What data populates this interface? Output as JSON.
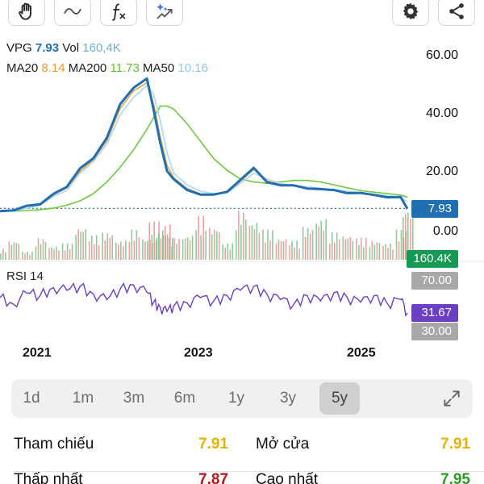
{
  "toolbar": {
    "buttons": [
      {
        "icon": "hand-icon"
      },
      {
        "icon": "line-tool-icon"
      },
      {
        "icon": "function-icon"
      },
      {
        "icon": "ai-sparkle-icon"
      },
      {
        "icon": "gear-icon"
      },
      {
        "icon": "share-icon"
      }
    ]
  },
  "legend": {
    "symbol": "VPG",
    "price": "7.93",
    "vol_label": "Vol",
    "vol_value": "160,4K",
    "ma20_label": "MA20",
    "ma20_value": "8.14",
    "ma200_label": "MA200",
    "ma200_value": "11.73",
    "ma50_label": "MA50",
    "ma50_value": "10.16"
  },
  "colors": {
    "price": "#1f6fb2",
    "ma20": "#f2a23a",
    "ma200": "#6cc93d",
    "ma50": "#a9d8f2",
    "vol_up": "#79c38a",
    "vol_down": "#ef8f8f",
    "rsi": "#6a3fc4",
    "volume_tag": "#179b54",
    "rsi_level_tag": "#a8a8a8",
    "ref_yellow": "#e8b100",
    "low_red": "#c0121b",
    "high_green": "#2a9d22"
  },
  "chart_data": {
    "type": "line",
    "symbol": "VPG",
    "x": [
      "2020-05",
      "2020-07",
      "2020-09",
      "2020-11",
      "2021-01",
      "2021-03",
      "2021-05",
      "2021-07",
      "2021-09",
      "2021-11",
      "2022-01",
      "2022-03",
      "2022-04",
      "2022-05",
      "2022-06",
      "2022-07",
      "2022-09",
      "2022-11",
      "2023-01",
      "2023-03",
      "2023-05",
      "2023-07",
      "2023-09",
      "2023-11",
      "2024-01",
      "2024-03",
      "2024-05",
      "2024-07",
      "2024-09",
      "2024-11",
      "2025-01",
      "2025-03",
      "2025-05",
      "2025-06"
    ],
    "series": [
      {
        "name": "VPG",
        "values": [
          7.0,
          7.5,
          8.5,
          9.5,
          13.0,
          15.0,
          22.0,
          25.0,
          32.0,
          44.0,
          49.0,
          52.5,
          42.0,
          30.0,
          21.0,
          18.0,
          14.0,
          13.0,
          12.5,
          13.5,
          18.0,
          21.5,
          17.0,
          16.0,
          15.5,
          15.0,
          14.5,
          14.0,
          13.5,
          13.0,
          12.5,
          12.0,
          11.5,
          7.93
        ]
      },
      {
        "name": "MA20",
        "values": [
          6.9,
          7.4,
          8.3,
          9.3,
          12.6,
          14.6,
          21.0,
          24.5,
          31.0,
          42.5,
          48.0,
          51.0,
          44.0,
          32.0,
          23.0,
          18.5,
          14.5,
          13.2,
          12.6,
          13.3,
          17.5,
          21.0,
          17.5,
          16.2,
          15.6,
          15.1,
          14.6,
          14.1,
          13.6,
          13.1,
          12.6,
          12.1,
          11.6,
          8.14
        ]
      },
      {
        "name": "MA50",
        "values": [
          6.8,
          7.2,
          8.0,
          9.0,
          12.0,
          14.0,
          20.0,
          24.0,
          30.0,
          40.0,
          46.0,
          50.0,
          47.0,
          38.0,
          27.0,
          20.0,
          16.0,
          13.8,
          13.0,
          13.2,
          16.5,
          20.0,
          18.0,
          16.5,
          15.8,
          15.3,
          14.8,
          14.3,
          13.8,
          13.3,
          12.8,
          12.3,
          11.8,
          10.16
        ]
      },
      {
        "name": "MA200",
        "values": [
          7.0,
          7.0,
          7.2,
          7.5,
          8.0,
          9.0,
          10.5,
          13.0,
          17.0,
          22.0,
          28.0,
          35.0,
          39.0,
          43.0,
          43.0,
          42.0,
          37.0,
          31.0,
          25.0,
          21.0,
          18.0,
          17.0,
          16.5,
          17.0,
          17.5,
          17.5,
          17.0,
          16.0,
          15.0,
          14.0,
          13.5,
          13.0,
          12.5,
          11.73
        ]
      }
    ],
    "ylim": [
      -10,
      66
    ],
    "yticks": [
      "60.00",
      "40.00",
      "20.00",
      "0.00"
    ],
    "xticks": [
      {
        "label": "2021",
        "x": "2021-01"
      },
      {
        "label": "2023",
        "x": "2023-01"
      },
      {
        "label": "2025",
        "x": "2025-01"
      }
    ],
    "last_price": 7.93,
    "last_price_label": "7.93",
    "volume": {
      "last_label": "160.4K",
      "values": [
        20,
        35,
        15,
        40,
        25,
        30,
        60,
        45,
        50,
        35,
        55,
        40,
        70,
        50,
        65,
        40,
        45,
        80,
        60,
        30,
        90,
        70,
        55,
        40,
        35,
        60,
        75,
        50,
        45,
        40,
        35,
        30,
        55,
        95
      ],
      "up": [
        1,
        0,
        1,
        1,
        0,
        1,
        1,
        0,
        1,
        1,
        0,
        1,
        0,
        0,
        1,
        0,
        1,
        1,
        0,
        1,
        1,
        0,
        1,
        0,
        0,
        1,
        1,
        0,
        1,
        0,
        1,
        0,
        1,
        1
      ]
    },
    "rsi": {
      "label": "RSI 14",
      "level_high": "70.00",
      "level_low": "30.00",
      "current": "31.67",
      "ylim": [
        0,
        100
      ],
      "values": [
        55,
        45,
        62,
        58,
        70,
        66,
        72,
        60,
        52,
        68,
        74,
        63,
        48,
        40,
        34,
        42,
        47,
        55,
        50,
        58,
        66,
        72,
        60,
        52,
        45,
        58,
        50,
        62,
        55,
        48,
        58,
        46,
        52,
        31.67
      ]
    }
  },
  "periods": {
    "items": [
      "1d",
      "1m",
      "3m",
      "6m",
      "1y",
      "3y",
      "5y"
    ],
    "active": "5y"
  },
  "stats": {
    "ref_label": "Tham chiếu",
    "ref_value": "7.91",
    "open_label": "Mở cửa",
    "open_value": "7.91",
    "low_label": "Thấp nhất",
    "low_value": "7.87",
    "high_label": "Cao nhất",
    "high_value": "7.95"
  }
}
